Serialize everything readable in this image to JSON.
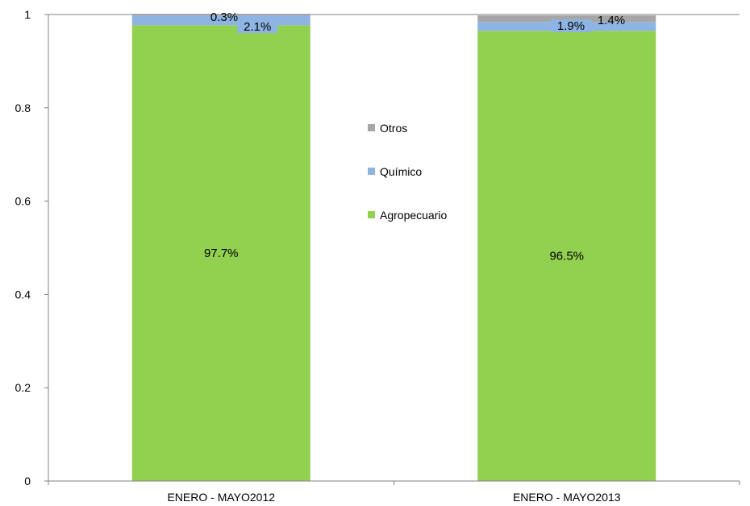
{
  "chart_data": {
    "type": "bar",
    "stacked": true,
    "categories": [
      "ENERO - MAYO2012",
      "ENERO - MAYO2013"
    ],
    "series": [
      {
        "name": "Agropecuario",
        "color": "#92D050",
        "values": [
          0.977,
          0.965
        ],
        "labels": [
          "97.7%",
          "96.5%"
        ]
      },
      {
        "name": "Químico",
        "color": "#8DB4E2",
        "values": [
          0.021,
          0.019
        ],
        "labels": [
          "2.1%",
          "1.9%"
        ]
      },
      {
        "name": "Otros",
        "color": "#A6A6A6",
        "values": [
          0.003,
          0.014
        ],
        "labels": [
          "0.3%",
          "1.4%"
        ]
      }
    ],
    "legend_order": [
      "Otros",
      "Químico",
      "Agropecuario"
    ],
    "yticks": [
      "0",
      "0.2",
      "0.4",
      "0.6",
      "0.8",
      "1"
    ],
    "ylim": [
      0,
      1
    ],
    "grid": false,
    "legend_position": "center"
  }
}
